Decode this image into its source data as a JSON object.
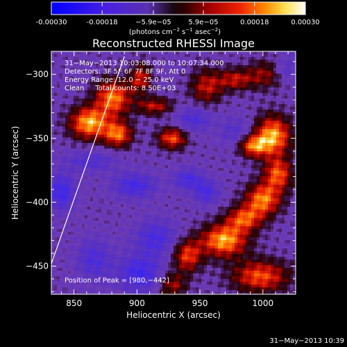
{
  "colorbar": {
    "min": -0.0003,
    "max": 0.0003,
    "tick_labels": [
      "-0.00030",
      "-0.00018",
      "−5.9e−05",
      "5.9e−05",
      "0.00018",
      "0.00030"
    ],
    "tick_values": [
      -0.0003,
      -0.00018,
      -5.9e-05,
      5.9e-05,
      0.00018,
      0.0003
    ],
    "units_parts": {
      "base": "(photons cm",
      "exp1": "−2",
      "mid1": " s",
      "exp2": "−1",
      "mid2": " asec",
      "exp3": "−2",
      "end": ")"
    }
  },
  "chart_data": {
    "type": "heatmap",
    "title": "Reconstructed RHESSI Image",
    "xlabel": "Heliocentric X (arcsec)",
    "ylabel": "Heliocentric Y (arcsec)",
    "xlim": [
      832,
      1026
    ],
    "ylim": [
      -472,
      -282
    ],
    "x_ticks": [
      850,
      900,
      950,
      1000
    ],
    "y_ticks": [
      -300,
      -350,
      -400,
      -450
    ],
    "x_tick_labels": [
      "850",
      "900",
      "950",
      "1000"
    ],
    "y_tick_labels": [
      "−300",
      "−350",
      "−400",
      "−450"
    ],
    "annotations": [
      "31−May−2013 10:03:08.000 to 10:07:34.000",
      "Detectors: 3F 5F 6F 7F 8F 9F, Att 0",
      "Energy Range: 12.0 − 25.0 keV",
      "Clean     Total counts: 8.50E+03"
    ],
    "peak_label": "Position of Peak = [980,−442]",
    "peak_position": [
      980,
      -442
    ],
    "limb_line": [
      [
        832,
        -448
      ],
      [
        890,
        -286
      ]
    ],
    "grid": false,
    "regions": [
      {
        "x": 862,
        "y": -338,
        "sx": 11,
        "sy": 9,
        "amp": 0.95
      },
      {
        "x": 881,
        "y": -318,
        "sx": 10,
        "sy": 10,
        "amp": 0.85
      },
      {
        "x": 885,
        "y": -347,
        "sx": 8,
        "sy": 7,
        "amp": 0.8
      },
      {
        "x": 903,
        "y": -303,
        "sx": 6,
        "sy": 8,
        "amp": 0.6
      },
      {
        "x": 914,
        "y": -325,
        "sx": 10,
        "sy": 5,
        "amp": 0.55
      },
      {
        "x": 928,
        "y": -350,
        "sx": 8,
        "sy": 6,
        "amp": 0.75
      },
      {
        "x": 955,
        "y": -310,
        "sx": 9,
        "sy": 10,
        "amp": 0.55
      },
      {
        "x": 978,
        "y": -304,
        "sx": 10,
        "sy": 6,
        "amp": 0.55
      },
      {
        "x": 1002,
        "y": -300,
        "sx": 10,
        "sy": 8,
        "amp": 0.45
      },
      {
        "x": 1008,
        "y": -348,
        "sx": 10,
        "sy": 11,
        "amp": 0.95
      },
      {
        "x": 992,
        "y": -356,
        "sx": 8,
        "sy": 6,
        "amp": 0.75
      },
      {
        "x": 1012,
        "y": -378,
        "sx": 8,
        "sy": 9,
        "amp": 0.75
      },
      {
        "x": 1000,
        "y": -398,
        "sx": 10,
        "sy": 9,
        "amp": 0.85
      },
      {
        "x": 985,
        "y": -413,
        "sx": 10,
        "sy": 7,
        "amp": 0.7
      },
      {
        "x": 969,
        "y": -430,
        "sx": 13,
        "sy": 9,
        "amp": 0.95
      },
      {
        "x": 940,
        "y": -442,
        "sx": 8,
        "sy": 9,
        "amp": 0.7
      },
      {
        "x": 998,
        "y": -458,
        "sx": 16,
        "sy": 9,
        "amp": 0.75
      },
      {
        "x": 928,
        "y": -465,
        "sx": 8,
        "sy": 7,
        "amp": 0.5
      },
      {
        "x": 940,
        "y": -382,
        "sx": 8,
        "sy": 6,
        "amp": -0.45
      },
      {
        "x": 955,
        "y": -392,
        "sx": 7,
        "sy": 7,
        "amp": -0.45
      },
      {
        "x": 898,
        "y": -387,
        "sx": 12,
        "sy": 7,
        "amp": -0.5
      },
      {
        "x": 840,
        "y": -392,
        "sx": 8,
        "sy": 10,
        "amp": -0.55
      },
      {
        "x": 863,
        "y": -368,
        "sx": 14,
        "sy": 6,
        "amp": -0.35
      },
      {
        "x": 915,
        "y": -428,
        "sx": 12,
        "sy": 10,
        "amp": -0.45
      },
      {
        "x": 902,
        "y": -456,
        "sx": 12,
        "sy": 10,
        "amp": -0.55
      },
      {
        "x": 866,
        "y": -445,
        "sx": 10,
        "sy": 12,
        "amp": -0.4
      },
      {
        "x": 945,
        "y": -335,
        "sx": 10,
        "sy": 7,
        "amp": -0.4
      },
      {
        "x": 978,
        "y": -345,
        "sx": 9,
        "sy": 8,
        "amp": -0.3
      },
      {
        "x": 1018,
        "y": -296,
        "sx": 7,
        "sy": 7,
        "amp": -0.3
      }
    ]
  },
  "footer_timestamp": "31−May−2013 10:39"
}
